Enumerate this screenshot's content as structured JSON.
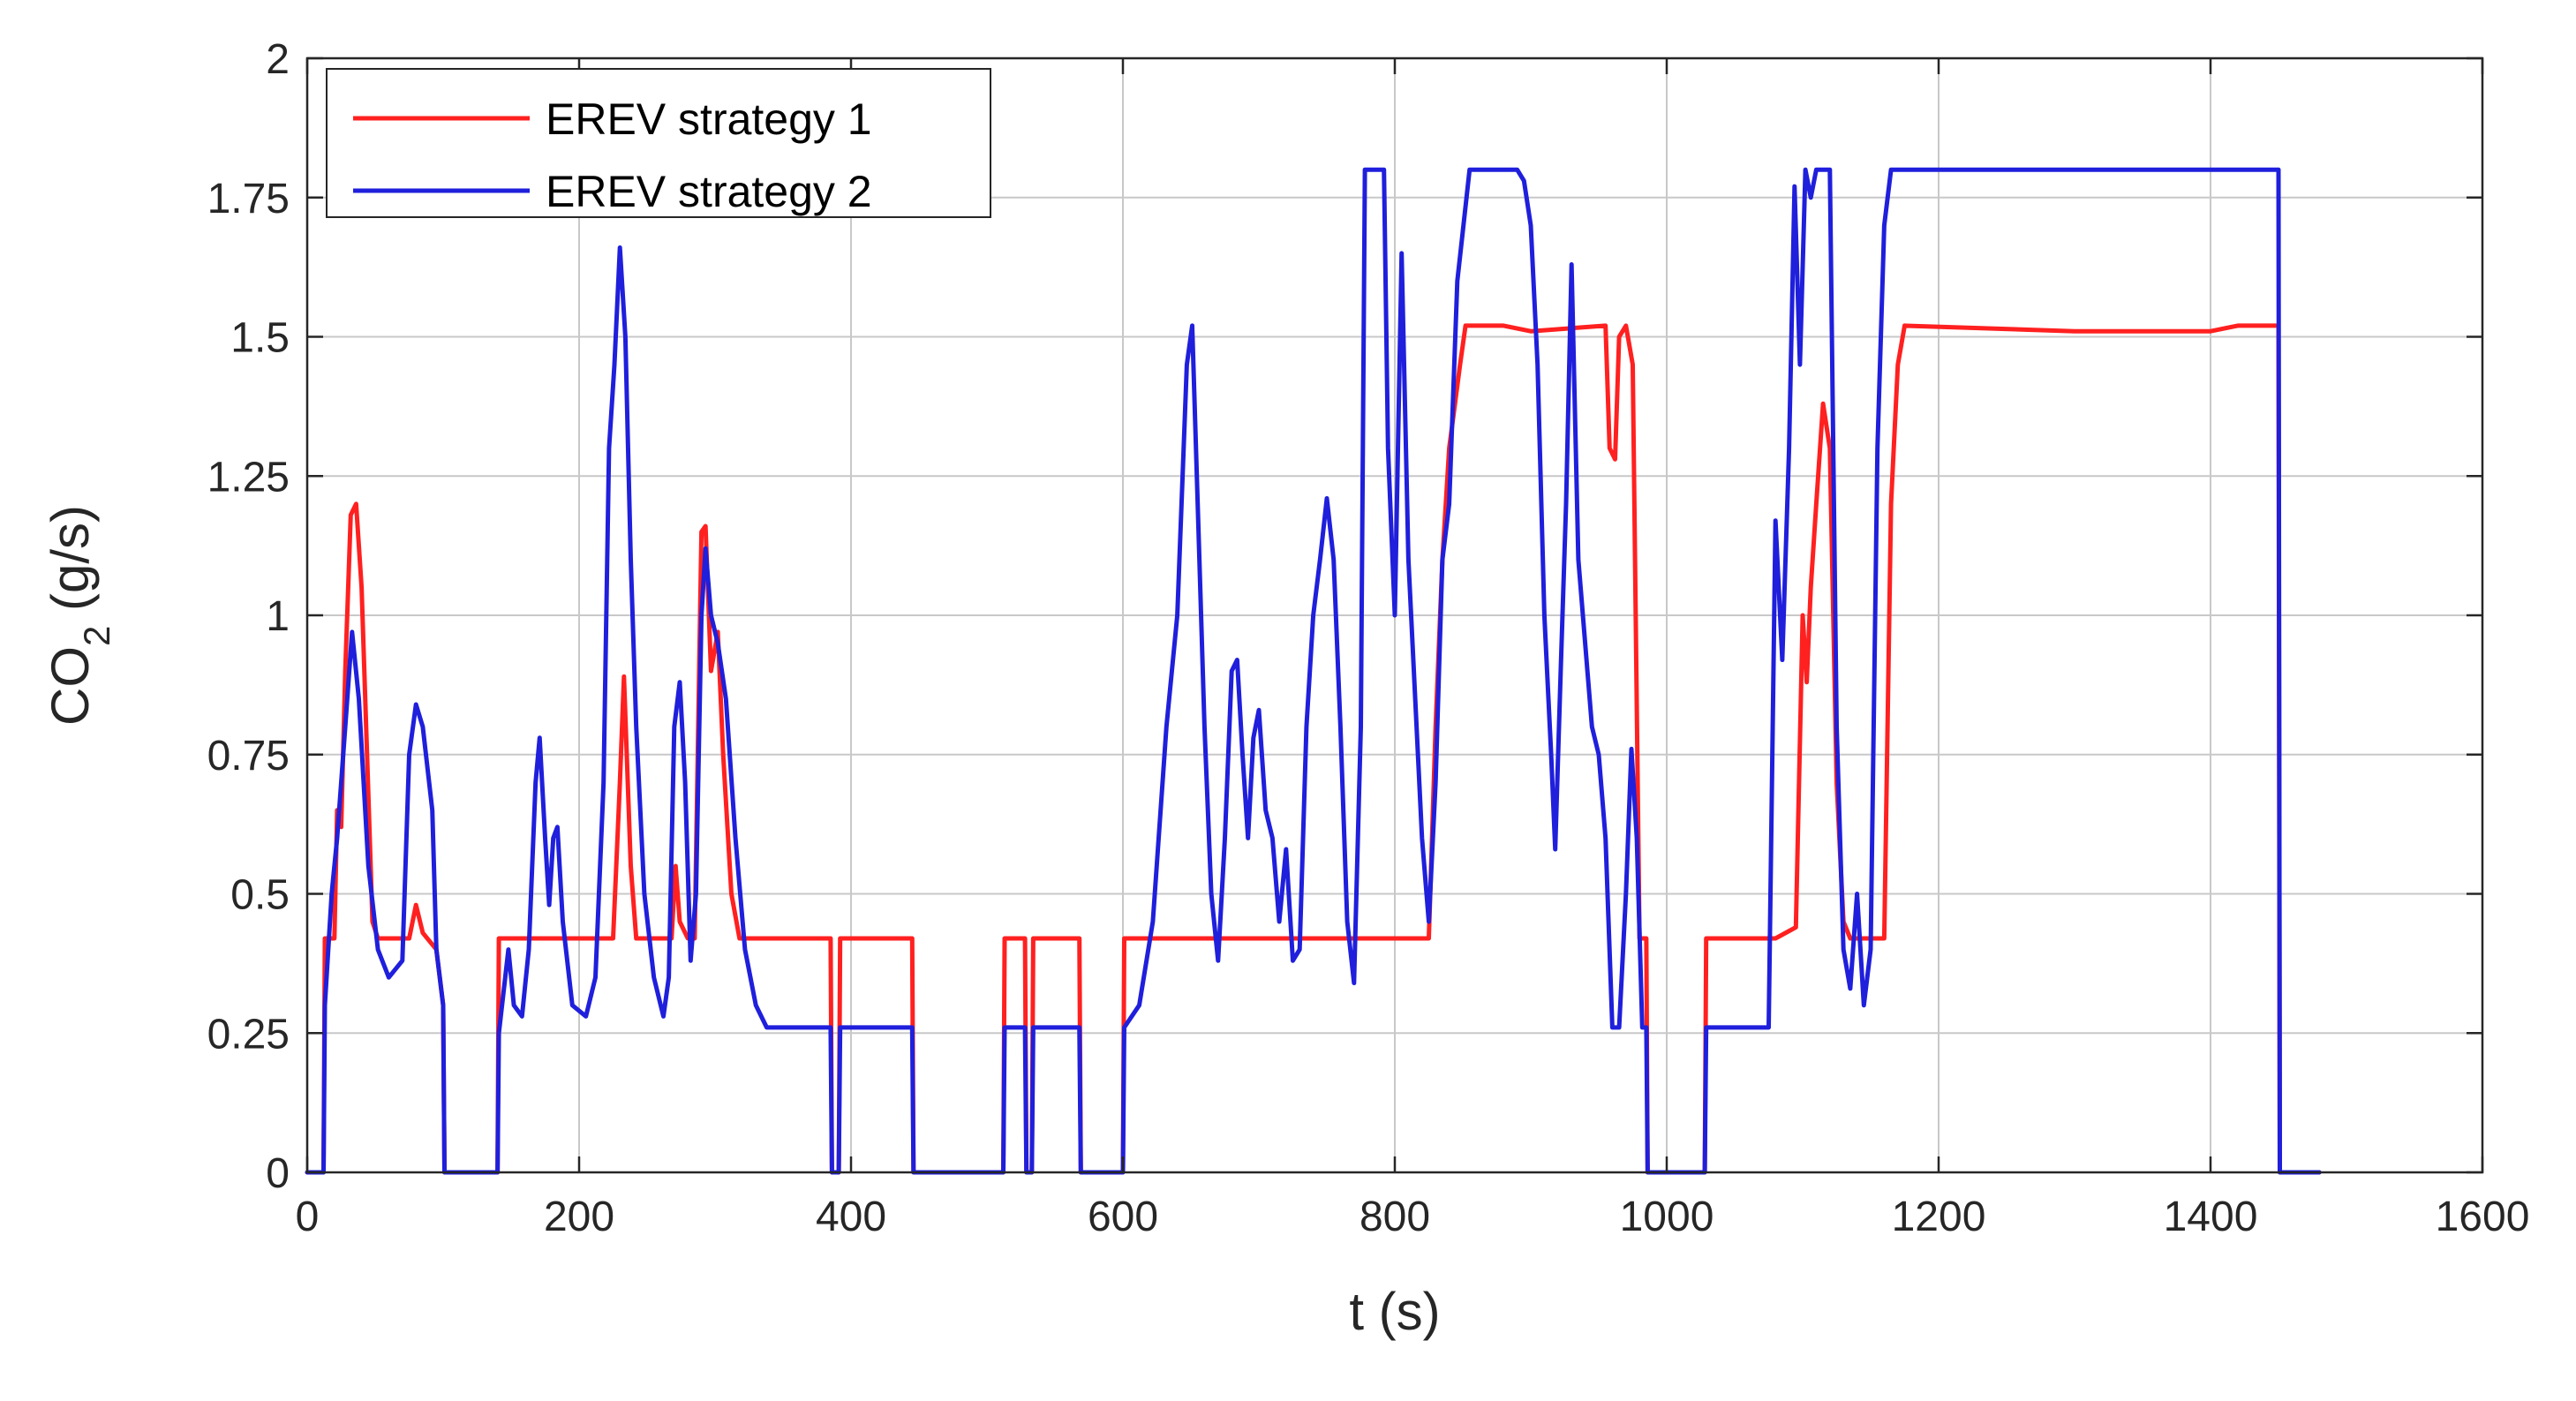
{
  "colors": {
    "strategy1": "#ff2020",
    "strategy2": "#1f1fdc",
    "grid": "#c8c8c8",
    "axis": "#262626"
  },
  "chart_data": {
    "type": "line",
    "title": "",
    "xlabel": "t (s)",
    "ylabel": {
      "base": "CO",
      "sub": "2",
      "rest": " (g/s)"
    },
    "xlim": [
      0,
      1600
    ],
    "ylim": [
      0,
      2
    ],
    "xticks": [
      0,
      200,
      400,
      600,
      800,
      1000,
      1200,
      1400,
      1600
    ],
    "yticks": [
      0,
      0.25,
      0.5,
      0.75,
      1,
      1.25,
      1.5,
      1.75,
      2
    ],
    "xtick_labels": [
      "0",
      "200",
      "400",
      "600",
      "800",
      "1000",
      "1200",
      "1400",
      "1600"
    ],
    "ytick_labels": [
      "0",
      "0.25",
      "0.5",
      "0.75",
      "1",
      "1.25",
      "1.5",
      "1.75",
      "2"
    ],
    "grid": true,
    "legend": {
      "position": "top-left"
    },
    "series": [
      {
        "name": "EREV strategy 1",
        "color": "#ff2020",
        "points": [
          [
            0,
            0
          ],
          [
            12,
            0
          ],
          [
            13,
            0.42
          ],
          [
            20,
            0.42
          ],
          [
            22,
            0.65
          ],
          [
            25,
            0.62
          ],
          [
            28,
            0.9
          ],
          [
            32,
            1.18
          ],
          [
            36,
            1.2
          ],
          [
            40,
            1.05
          ],
          [
            44,
            0.75
          ],
          [
            48,
            0.45
          ],
          [
            52,
            0.42
          ],
          [
            75,
            0.42
          ],
          [
            80,
            0.48
          ],
          [
            85,
            0.43
          ],
          [
            95,
            0.4
          ],
          [
            100,
            0.3
          ],
          [
            101,
            0
          ],
          [
            140,
            0
          ],
          [
            141,
            0.42
          ],
          [
            225,
            0.42
          ],
          [
            230,
            0.7
          ],
          [
            233,
            0.89
          ],
          [
            238,
            0.55
          ],
          [
            242,
            0.42
          ],
          [
            268,
            0.42
          ],
          [
            271,
            0.55
          ],
          [
            274,
            0.45
          ],
          [
            280,
            0.42
          ],
          [
            285,
            0.42
          ],
          [
            290,
            1.15
          ],
          [
            293,
            1.16
          ],
          [
            297,
            0.9
          ],
          [
            302,
            0.97
          ],
          [
            306,
            0.75
          ],
          [
            312,
            0.5
          ],
          [
            318,
            0.42
          ],
          [
            385,
            0.42
          ],
          [
            386,
            0
          ],
          [
            391,
            0
          ],
          [
            392,
            0.42
          ],
          [
            445,
            0.42
          ],
          [
            446,
            0
          ],
          [
            512,
            0
          ],
          [
            513,
            0.42
          ],
          [
            528,
            0.42
          ],
          [
            529,
            0
          ],
          [
            533,
            0
          ],
          [
            534,
            0.42
          ],
          [
            568,
            0.42
          ],
          [
            569,
            0
          ],
          [
            600,
            0
          ],
          [
            601,
            0.42
          ],
          [
            800,
            0.42
          ],
          [
            825,
            0.42
          ],
          [
            830,
            0.8
          ],
          [
            835,
            1.1
          ],
          [
            840,
            1.3
          ],
          [
            848,
            1.45
          ],
          [
            852,
            1.52
          ],
          [
            880,
            1.52
          ],
          [
            900,
            1.51
          ],
          [
            955,
            1.52
          ],
          [
            958,
            1.3
          ],
          [
            962,
            1.28
          ],
          [
            965,
            1.5
          ],
          [
            970,
            1.52
          ],
          [
            975,
            1.45
          ],
          [
            980,
            0.42
          ],
          [
            985,
            0.42
          ],
          [
            986,
            0
          ],
          [
            1028,
            0
          ],
          [
            1029,
            0.42
          ],
          [
            1080,
            0.42
          ],
          [
            1095,
            0.44
          ],
          [
            1100,
            1.0
          ],
          [
            1103,
            0.88
          ],
          [
            1106,
            1.05
          ],
          [
            1110,
            1.2
          ],
          [
            1115,
            1.38
          ],
          [
            1120,
            1.3
          ],
          [
            1125,
            0.7
          ],
          [
            1130,
            0.45
          ],
          [
            1135,
            0.42
          ],
          [
            1160,
            0.42
          ],
          [
            1165,
            1.2
          ],
          [
            1170,
            1.45
          ],
          [
            1175,
            1.52
          ],
          [
            1300,
            1.51
          ],
          [
            1400,
            1.51
          ],
          [
            1420,
            1.52
          ],
          [
            1450,
            1.52
          ],
          [
            1451,
            0
          ],
          [
            1480,
            0
          ]
        ]
      },
      {
        "name": "EREV strategy 2",
        "color": "#1f1fdc",
        "points": [
          [
            0,
            0
          ],
          [
            12,
            0
          ],
          [
            13,
            0.3
          ],
          [
            18,
            0.5
          ],
          [
            22,
            0.6
          ],
          [
            28,
            0.8
          ],
          [
            33,
            0.97
          ],
          [
            38,
            0.85
          ],
          [
            45,
            0.55
          ],
          [
            52,
            0.4
          ],
          [
            60,
            0.35
          ],
          [
            70,
            0.38
          ],
          [
            75,
            0.75
          ],
          [
            80,
            0.84
          ],
          [
            85,
            0.8
          ],
          [
            92,
            0.65
          ],
          [
            95,
            0.4
          ],
          [
            100,
            0.3
          ],
          [
            101,
            0
          ],
          [
            140,
            0
          ],
          [
            141,
            0.25
          ],
          [
            148,
            0.4
          ],
          [
            152,
            0.3
          ],
          [
            158,
            0.28
          ],
          [
            163,
            0.4
          ],
          [
            168,
            0.7
          ],
          [
            171,
            0.78
          ],
          [
            175,
            0.6
          ],
          [
            178,
            0.48
          ],
          [
            181,
            0.6
          ],
          [
            184,
            0.62
          ],
          [
            188,
            0.45
          ],
          [
            195,
            0.3
          ],
          [
            205,
            0.28
          ],
          [
            212,
            0.35
          ],
          [
            218,
            0.7
          ],
          [
            222,
            1.3
          ],
          [
            226,
            1.45
          ],
          [
            230,
            1.66
          ],
          [
            234,
            1.5
          ],
          [
            238,
            1.1
          ],
          [
            242,
            0.8
          ],
          [
            248,
            0.5
          ],
          [
            255,
            0.35
          ],
          [
            262,
            0.28
          ],
          [
            266,
            0.35
          ],
          [
            270,
            0.8
          ],
          [
            274,
            0.88
          ],
          [
            278,
            0.7
          ],
          [
            282,
            0.38
          ],
          [
            286,
            0.5
          ],
          [
            290,
            1.0
          ],
          [
            293,
            1.12
          ],
          [
            297,
            1.0
          ],
          [
            302,
            0.95
          ],
          [
            308,
            0.85
          ],
          [
            315,
            0.6
          ],
          [
            322,
            0.4
          ],
          [
            330,
            0.3
          ],
          [
            338,
            0.26
          ],
          [
            385,
            0.26
          ],
          [
            386,
            0
          ],
          [
            391,
            0
          ],
          [
            392,
            0.26
          ],
          [
            445,
            0.26
          ],
          [
            446,
            0
          ],
          [
            512,
            0
          ],
          [
            513,
            0.26
          ],
          [
            528,
            0.26
          ],
          [
            529,
            0
          ],
          [
            533,
            0
          ],
          [
            534,
            0.26
          ],
          [
            568,
            0.26
          ],
          [
            569,
            0
          ],
          [
            600,
            0
          ],
          [
            601,
            0.26
          ],
          [
            612,
            0.3
          ],
          [
            622,
            0.45
          ],
          [
            632,
            0.8
          ],
          [
            640,
            1.0
          ],
          [
            647,
            1.45
          ],
          [
            651,
            1.52
          ],
          [
            655,
            1.2
          ],
          [
            660,
            0.8
          ],
          [
            665,
            0.5
          ],
          [
            670,
            0.38
          ],
          [
            675,
            0.6
          ],
          [
            680,
            0.9
          ],
          [
            684,
            0.92
          ],
          [
            688,
            0.75
          ],
          [
            692,
            0.6
          ],
          [
            696,
            0.78
          ],
          [
            700,
            0.83
          ],
          [
            705,
            0.65
          ],
          [
            710,
            0.6
          ],
          [
            715,
            0.45
          ],
          [
            720,
            0.58
          ],
          [
            725,
            0.38
          ],
          [
            730,
            0.4
          ],
          [
            735,
            0.8
          ],
          [
            740,
            1.0
          ],
          [
            745,
            1.1
          ],
          [
            750,
            1.21
          ],
          [
            755,
            1.1
          ],
          [
            760,
            0.8
          ],
          [
            765,
            0.45
          ],
          [
            770,
            0.34
          ],
          [
            775,
            0.8
          ],
          [
            778,
            1.8
          ],
          [
            780,
            1.8
          ],
          [
            792,
            1.8
          ],
          [
            795,
            1.3
          ],
          [
            800,
            1.0
          ],
          [
            805,
            1.65
          ],
          [
            810,
            1.1
          ],
          [
            815,
            0.85
          ],
          [
            820,
            0.6
          ],
          [
            825,
            0.45
          ],
          [
            830,
            0.7
          ],
          [
            835,
            1.1
          ],
          [
            840,
            1.2
          ],
          [
            846,
            1.6
          ],
          [
            855,
            1.8
          ],
          [
            890,
            1.8
          ],
          [
            895,
            1.78
          ],
          [
            900,
            1.7
          ],
          [
            905,
            1.45
          ],
          [
            910,
            1.0
          ],
          [
            915,
            0.75
          ],
          [
            918,
            0.58
          ],
          [
            922,
            0.9
          ],
          [
            926,
            1.2
          ],
          [
            930,
            1.63
          ],
          [
            935,
            1.1
          ],
          [
            940,
            0.95
          ],
          [
            945,
            0.8
          ],
          [
            950,
            0.75
          ],
          [
            955,
            0.6
          ],
          [
            960,
            0.26
          ],
          [
            965,
            0.26
          ],
          [
            970,
            0.5
          ],
          [
            974,
            0.76
          ],
          [
            978,
            0.6
          ],
          [
            982,
            0.26
          ],
          [
            985,
            0.26
          ],
          [
            986,
            0
          ],
          [
            1028,
            0
          ],
          [
            1029,
            0.26
          ],
          [
            1075,
            0.26
          ],
          [
            1080,
            1.17
          ],
          [
            1085,
            0.92
          ],
          [
            1090,
            1.3
          ],
          [
            1094,
            1.77
          ],
          [
            1098,
            1.45
          ],
          [
            1102,
            1.8
          ],
          [
            1106,
            1.75
          ],
          [
            1110,
            1.8
          ],
          [
            1120,
            1.8
          ],
          [
            1125,
            0.8
          ],
          [
            1130,
            0.4
          ],
          [
            1135,
            0.33
          ],
          [
            1140,
            0.5
          ],
          [
            1145,
            0.3
          ],
          [
            1150,
            0.4
          ],
          [
            1155,
            1.3
          ],
          [
            1160,
            1.7
          ],
          [
            1165,
            1.8
          ],
          [
            1300,
            1.8
          ],
          [
            1400,
            1.8
          ],
          [
            1420,
            1.8
          ],
          [
            1450,
            1.8
          ],
          [
            1451,
            0
          ],
          [
            1480,
            0
          ]
        ]
      }
    ]
  }
}
